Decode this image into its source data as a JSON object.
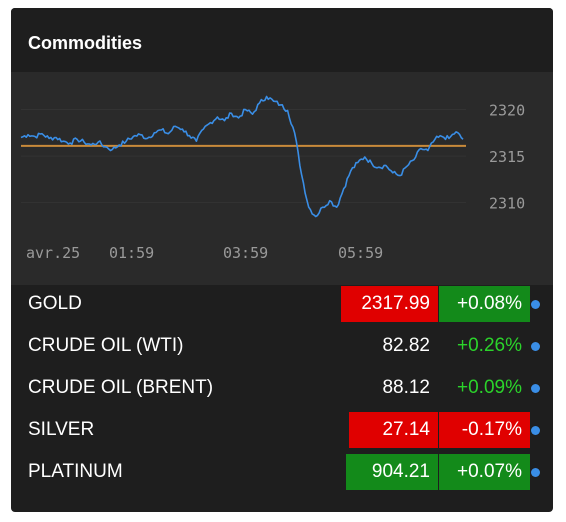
{
  "widget": {
    "title": "Commodities"
  },
  "colors": {
    "line": "#3a8ee6",
    "reference": "#c98a3a",
    "down": "#e00000",
    "up_fill": "#138a1a",
    "up_text": "#2bd32b",
    "dot": "#3a8ee6"
  },
  "chart_data": {
    "type": "line",
    "x_ticks": [
      "avr.25",
      "01:59",
      "03:59",
      "05:59"
    ],
    "y_ticks": [
      2320,
      2315,
      2310
    ],
    "ylim": [
      2306.3,
      2323.5
    ],
    "reference_value": 2316.1,
    "series": [
      {
        "values": [
          2317.0,
          2317.3,
          2317.1,
          2317.4,
          2316.9,
          2317.0,
          2316.6,
          2316.4,
          2316.8,
          2316.5,
          2316.2,
          2316.5,
          2316.0,
          2315.7,
          2316.2,
          2316.6,
          2317.1,
          2317.3,
          2316.9,
          2317.5,
          2317.8,
          2317.4,
          2318.2,
          2317.9,
          2317.2,
          2316.6,
          2317.9,
          2318.6,
          2319.2,
          2318.8,
          2319.6,
          2319.1,
          2320.0,
          2319.5,
          2320.7,
          2321.4,
          2320.9,
          2320.5,
          2319.9,
          2317.5,
          2313.0,
          2309.5,
          2308.5,
          2309.5,
          2310.2,
          2309.5,
          2311.5,
          2313.4,
          2314.3,
          2314.9,
          2314.2,
          2313.8,
          2314.0,
          2313.2,
          2312.9,
          2313.9,
          2314.6,
          2315.8,
          2315.6,
          2316.8,
          2317.1,
          2316.9,
          2317.6,
          2316.8
        ]
      }
    ]
  },
  "rows": [
    {
      "name": "GOLD",
      "price": "2317.99",
      "change": "+0.08%",
      "price_bg": "#e00000",
      "change_bg": "#138a1a",
      "change_color": "#ffffff"
    },
    {
      "name": "CRUDE OIL (WTI)",
      "price": "82.82",
      "change": "+0.26%",
      "price_bg": "transparent",
      "change_bg": "transparent",
      "change_color": "#2bd32b"
    },
    {
      "name": "CRUDE OIL (BRENT)",
      "price": "88.12",
      "change": "+0.09%",
      "price_bg": "transparent",
      "change_bg": "transparent",
      "change_color": "#2bd32b"
    },
    {
      "name": "SILVER",
      "price": "27.14",
      "change": "-0.17%",
      "price_bg": "#e00000",
      "change_bg": "#e00000",
      "change_color": "#ffffff"
    },
    {
      "name": "PLATINUM",
      "price": "904.21",
      "change": "+0.07%",
      "price_bg": "#138a1a",
      "change_bg": "#138a1a",
      "change_color": "#ffffff"
    }
  ]
}
